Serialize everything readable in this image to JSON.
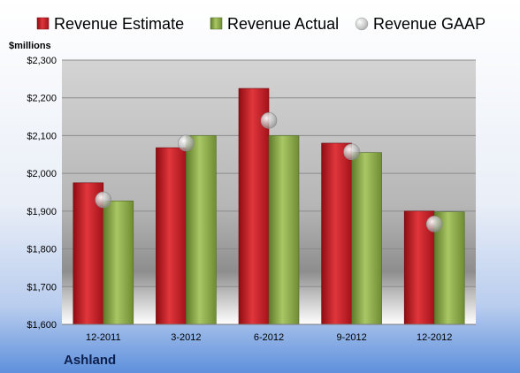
{
  "company": "Ashland",
  "colors": {
    "estimate": "#c8161e",
    "actual": "#8fae4a",
    "gaap": "#b8b8b8"
  },
  "chart_data": {
    "type": "bar",
    "title": "",
    "xlabel": "",
    "ylabel": "$millions",
    "categories": [
      "12-2011",
      "3-2012",
      "6-2012",
      "9-2012",
      "12-2012"
    ],
    "series": [
      {
        "name": "Revenue Estimate",
        "kind": "bar",
        "values": [
          1975,
          2068,
          2225,
          2080,
          1900
        ]
      },
      {
        "name": "Revenue Actual",
        "kind": "bar",
        "values": [
          1927,
          2100,
          2100,
          2055,
          1898
        ]
      },
      {
        "name": "Revenue GAAP",
        "kind": "marker",
        "values": [
          1930,
          2080,
          2140,
          2057,
          1866
        ]
      }
    ],
    "ylim": [
      1600,
      2300
    ],
    "yticks": [
      1600,
      1700,
      1800,
      1900,
      2000,
      2100,
      2200,
      2300
    ],
    "ytick_labels": [
      "$1,600",
      "$1,700",
      "$1,800",
      "$1,900",
      "$2,000",
      "$2,100",
      "$2,200",
      "$2,300"
    ],
    "grid": true,
    "legend_position": "top"
  }
}
